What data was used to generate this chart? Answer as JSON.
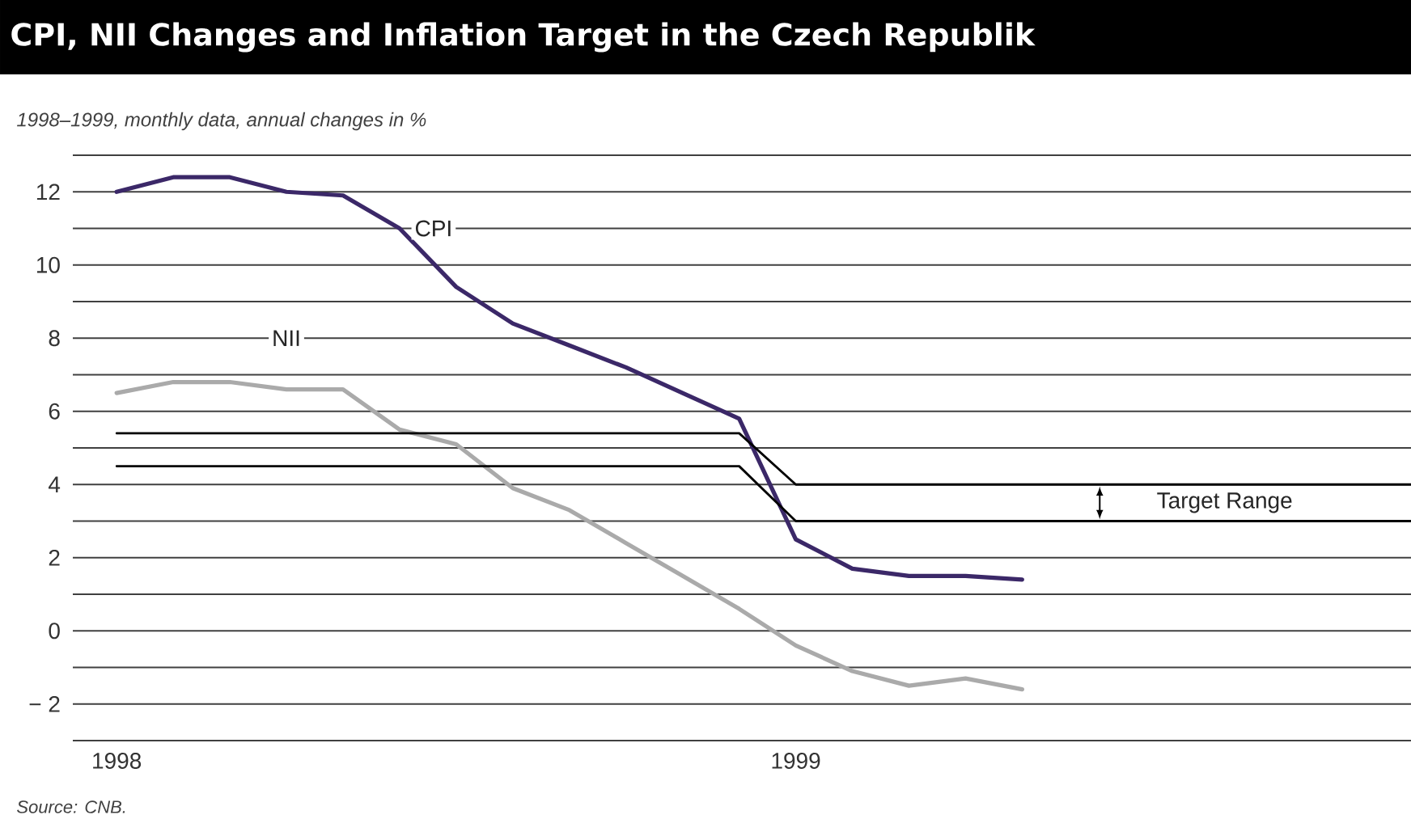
{
  "chart_data": {
    "type": "line",
    "title": "CPI, NII Changes and Inflation Target in the Czech Republik",
    "subtitle": "1998–1999, monthly data, annual changes in %",
    "x": [
      "1998-01",
      "1998-02",
      "1998-03",
      "1998-04",
      "1998-05",
      "1998-06",
      "1998-07",
      "1998-08",
      "1998-09",
      "1998-10",
      "1998-11",
      "1998-12",
      "1999-01",
      "1999-02",
      "1999-03",
      "1999-04",
      "1999-05"
    ],
    "series": [
      {
        "name": "CPI",
        "color": "#3b2868",
        "values": [
          12.0,
          12.4,
          12.4,
          12.0,
          11.9,
          11.0,
          9.4,
          8.4,
          7.8,
          7.2,
          6.5,
          5.8,
          2.5,
          1.7,
          1.5,
          1.5,
          1.4
        ]
      },
      {
        "name": "NII",
        "color": "#aaaaaa",
        "values": [
          6.5,
          6.8,
          6.8,
          6.6,
          6.6,
          5.5,
          5.1,
          3.9,
          3.3,
          2.4,
          1.5,
          0.6,
          -0.4,
          -1.1,
          -1.5,
          -1.3,
          -1.6
        ]
      },
      {
        "color": "#000000",
        "x": [
          "1998-01",
          "1998-12",
          "1999-01",
          "1999-11-28"
        ],
        "values": [
          5.4,
          5.4,
          4.0,
          4.0
        ]
      },
      {
        "color": "#000000",
        "x": [
          "1998-01",
          "1998-12",
          "1999-01",
          "1999-11-28"
        ],
        "values": [
          4.5,
          4.5,
          3.0,
          3.0
        ]
      }
    ],
    "xlim": [
      "1997-12-08",
      "1999-11-28"
    ],
    "xticks": [
      "1998",
      "1999"
    ],
    "ylim": [
      -3,
      13
    ],
    "yticks": [
      {
        "value": -3,
        "label": null
      },
      {
        "value": -2,
        "label": "− 2"
      },
      {
        "value": -1,
        "label": null
      },
      0,
      {
        "value": 1,
        "label": null
      },
      2,
      {
        "value": 3,
        "label": null
      },
      4,
      {
        "value": 5,
        "label": null
      },
      6,
      {
        "value": 7,
        "label": null
      },
      8,
      {
        "value": 9,
        "label": null
      },
      10,
      {
        "value": 11,
        "label": null
      },
      12,
      {
        "value": 13,
        "label": null
      }
    ],
    "grid": "y",
    "annotations": [
      "Source: CNB.",
      "Target Range"
    ]
  }
}
